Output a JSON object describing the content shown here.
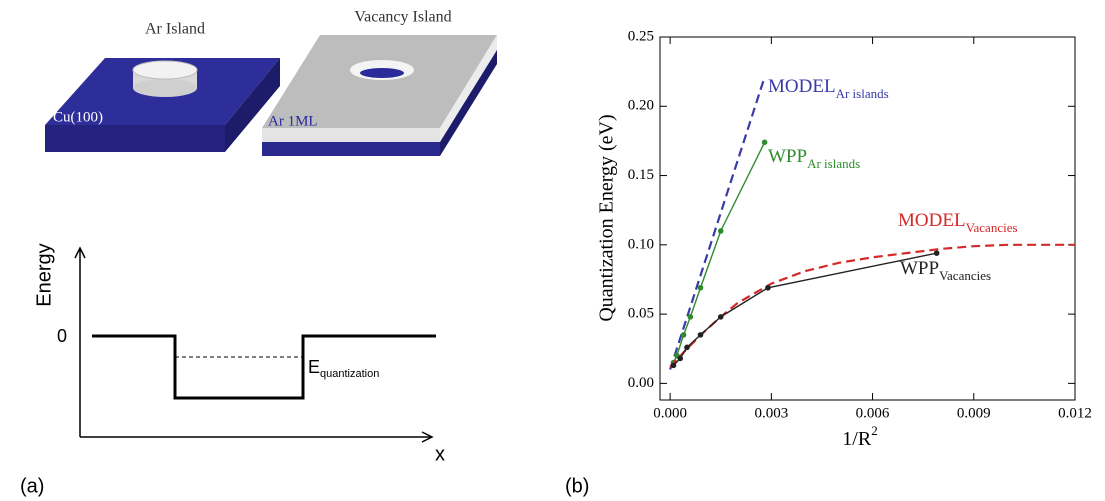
{
  "panel_a": {
    "label": "(a)",
    "island_left": "Ar Island",
    "island_right": "Vacancy Island",
    "substrate": "Cu(100)",
    "layer": "Ar 1ML",
    "y_axis": "Energy",
    "zero": "0",
    "energy_label": "E",
    "energy_sub": "quantization",
    "x_axis": "x"
  },
  "chart_data": {
    "type": "line",
    "panel_label": "(b)",
    "y_label": "Quantization Energy (eV)",
    "x_label": "1/R",
    "x_label_sup": "2",
    "xlim": [
      -0.0003,
      0.012
    ],
    "ylim": [
      -0.012,
      0.25
    ],
    "xticks": [
      {
        "value": 0,
        "label": "0.000"
      },
      {
        "value": 0.003,
        "label": "0.003"
      },
      {
        "value": 0.006,
        "label": "0.006"
      },
      {
        "value": 0.009,
        "label": "0.009"
      },
      {
        "value": 0.012,
        "label": "0.012"
      }
    ],
    "yticks": [
      {
        "value": 0,
        "label": "0.00"
      },
      0.05,
      {
        "value": 0.1,
        "label": "0.10"
      },
      0.15,
      {
        "value": 0.2,
        "label": "0.20"
      },
      0.25
    ],
    "series": [
      {
        "name": "MODEL",
        "name_sub": "Ar islands",
        "color": "#3a3aa8",
        "dashed": true,
        "marker": false,
        "x": [
          0,
          0.0028
        ],
        "values": [
          0.01,
          0.221
        ]
      },
      {
        "name": "WPP",
        "name_sub": "Ar islands",
        "color": "#2e8b2e",
        "dashed": false,
        "marker": true,
        "x": [
          0.0001,
          0.0002,
          0.0004,
          0.0006,
          0.0009,
          0.0015,
          0.0028
        ],
        "values": [
          0.015,
          0.02,
          0.035,
          0.048,
          0.069,
          0.11,
          0.174
        ]
      },
      {
        "name": "MODEL",
        "name_sub": "Vacancies",
        "color": "#d42a2a",
        "dashed": true,
        "marker": false,
        "x": [
          0,
          0.0005,
          0.001,
          0.0015,
          0.002,
          0.003,
          0.004,
          0.005,
          0.006,
          0.007,
          0.008,
          0.009,
          0.01,
          0.012
        ],
        "values": [
          0.012,
          0.025,
          0.037,
          0.048,
          0.058,
          0.072,
          0.081,
          0.087,
          0.091,
          0.094,
          0.097,
          0.099,
          0.1,
          0.1
        ]
      },
      {
        "name": "WPP",
        "name_sub": "Vacancies",
        "color": "#222222",
        "dashed": false,
        "marker": true,
        "x": [
          0.0001,
          0.0003,
          0.0005,
          0.0009,
          0.0015,
          0.0029,
          0.0079
        ],
        "values": [
          0.013,
          0.018,
          0.026,
          0.035,
          0.048,
          0.069,
          0.094
        ]
      }
    ]
  }
}
